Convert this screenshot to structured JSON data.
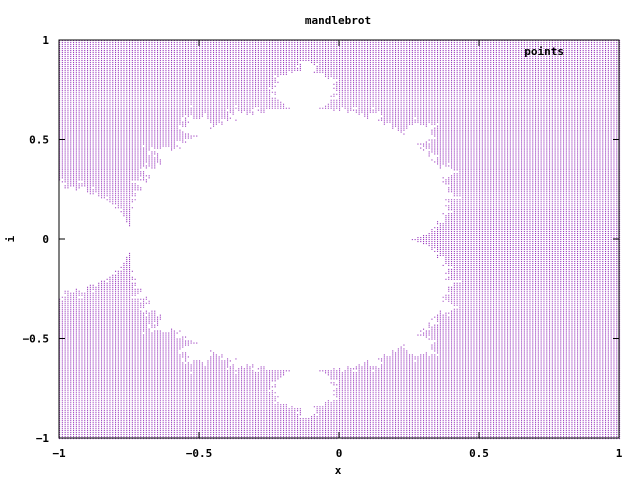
{
  "chart_data": {
    "type": "scatter",
    "title": "mandlebrot",
    "xlabel": "x",
    "ylabel": "i",
    "xlim": [
      -1,
      1
    ],
    "ylim": [
      -1,
      1
    ],
    "x_ticks": [
      "−1",
      "−0.5",
      "0",
      "0.5",
      "1"
    ],
    "y_ticks": [
      "1",
      "0.5",
      "0",
      "−0.5",
      "−1"
    ],
    "x_tick_values": [
      -1,
      -0.5,
      0,
      0.5,
      1
    ],
    "y_tick_values": [
      1,
      0.5,
      0,
      -0.5,
      -1
    ],
    "grid": false,
    "legend": {
      "position": "top-right",
      "entries": [
        "points"
      ]
    },
    "series": [
      {
        "name": "points",
        "color": "#9b3dbf",
        "marker": "dot",
        "description_of_set": "points plotted for complex c = x + i·y lying outside the Mandelbrot set",
        "x_range": [
          -1,
          1
        ],
        "y_range": [
          -1,
          1
        ],
        "x_step": 0.01,
        "y_step": 0.01,
        "max_iterations": 50
      }
    ]
  }
}
